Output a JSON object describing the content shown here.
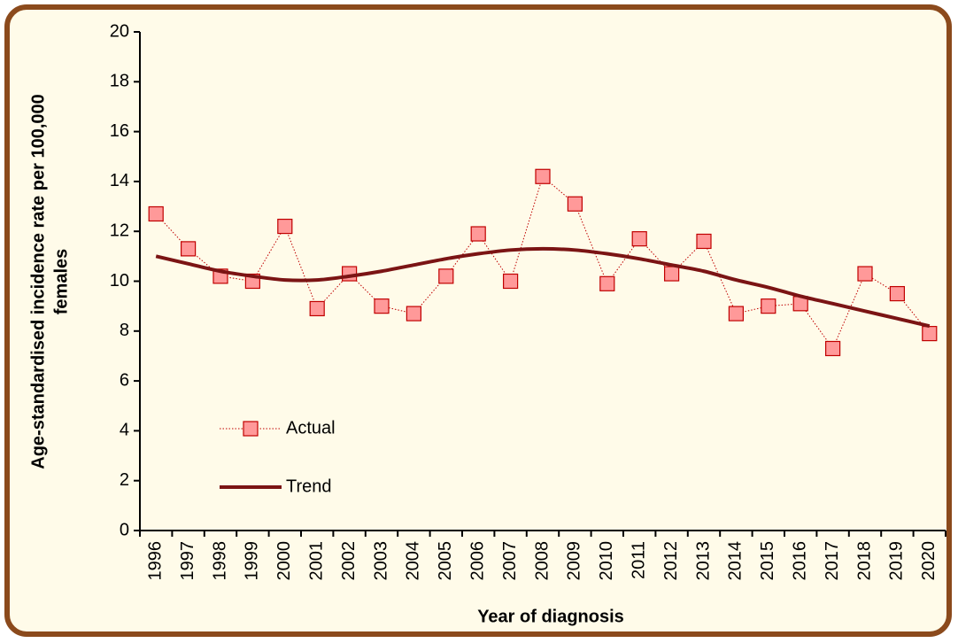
{
  "chart_data": {
    "type": "line",
    "x_label": "Year of diagnosis",
    "y_label": [
      "Age-standardised incidence rate per 100,000",
      "females"
    ],
    "categories": [
      "1996",
      "1997",
      "1998",
      "1999",
      "2000",
      "2001",
      "2002",
      "2003",
      "2004",
      "2005",
      "2006",
      "2007",
      "2008",
      "2009",
      "2010",
      "2011",
      "2012",
      "2013",
      "2014",
      "2015",
      "2016",
      "2017",
      "2018",
      "2019",
      "2020"
    ],
    "series": [
      {
        "name": "Actual",
        "color": "#c00000",
        "marker_fill": "#ff9999",
        "style": "dotted",
        "values": [
          12.7,
          11.3,
          10.2,
          10.0,
          12.2,
          8.9,
          10.3,
          9.0,
          8.7,
          10.2,
          11.9,
          10.0,
          14.2,
          13.1,
          9.9,
          11.7,
          10.3,
          11.6,
          8.7,
          9.0,
          9.1,
          7.3,
          10.3,
          9.5,
          7.9
        ]
      },
      {
        "name": "Trend",
        "color": "#7b1414",
        "style": "smooth",
        "values": [
          11.0,
          10.7,
          10.4,
          10.2,
          10.05,
          10.05,
          10.2,
          10.4,
          10.65,
          10.9,
          11.1,
          11.25,
          11.3,
          11.25,
          11.1,
          10.9,
          10.65,
          10.4,
          10.05,
          9.75,
          9.4,
          9.1,
          8.8,
          8.5,
          8.2
        ]
      }
    ],
    "ylim": [
      0,
      20
    ],
    "yticks": [
      0,
      2,
      4,
      6,
      8,
      10,
      12,
      14,
      16,
      18,
      20
    ],
    "grid": false,
    "legend": "lower left"
  }
}
